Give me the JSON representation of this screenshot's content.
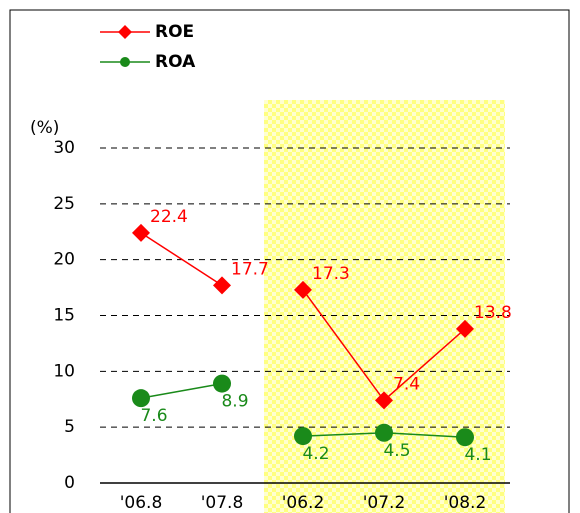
{
  "chart_data": {
    "type": "line",
    "y_unit_label": "(%)",
    "categories": [
      "'06.8",
      "'07.8",
      "'06.2",
      "'07.2",
      "'08.2"
    ],
    "series": [
      {
        "name": "ROE",
        "color": "#ff0000",
        "marker": "diamond",
        "values": [
          22.4,
          17.7,
          17.3,
          7.4,
          13.8
        ]
      },
      {
        "name": "ROA",
        "color": "#1a8a1a",
        "marker": "circle",
        "values": [
          7.6,
          8.9,
          4.2,
          4.5,
          4.1
        ]
      }
    ],
    "break_after": 1,
    "highlight": {
      "from": 2,
      "to": 4,
      "color": "#ffff99"
    },
    "ylim": [
      0,
      30
    ],
    "yticks": [
      0,
      5,
      10,
      15,
      20,
      25,
      30
    ],
    "grid": true,
    "legend": "top-left"
  }
}
